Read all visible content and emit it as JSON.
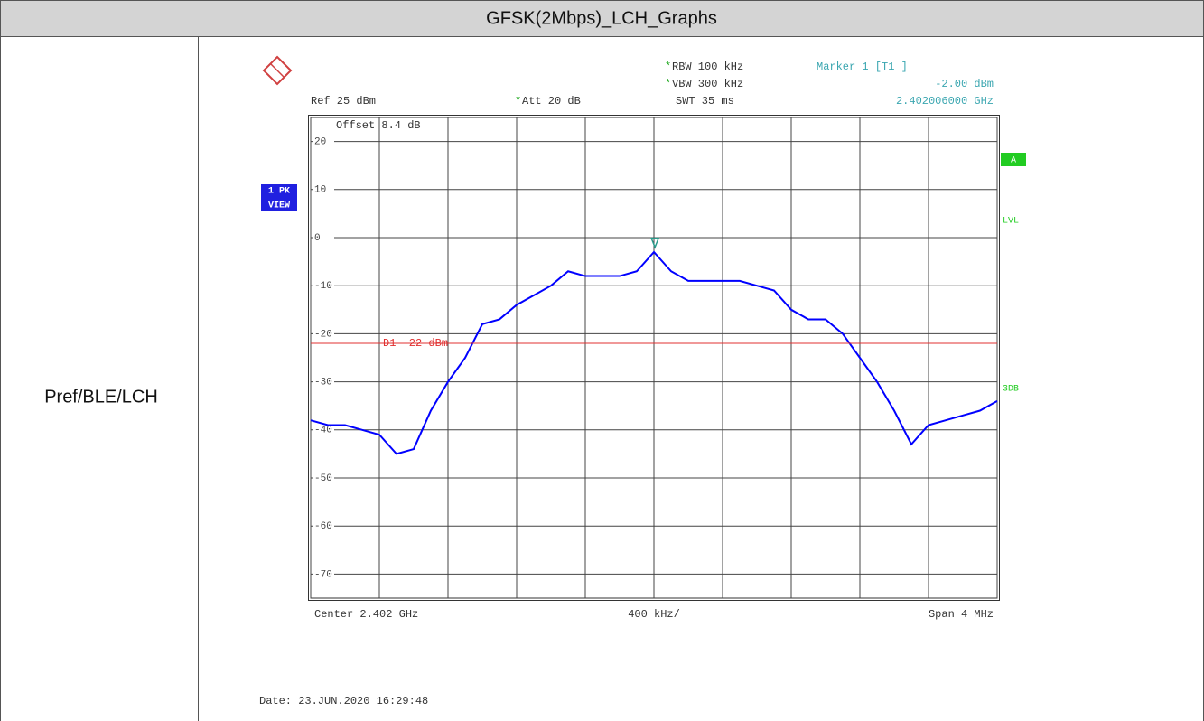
{
  "table": {
    "title": "GFSK(2Mbps)_LCH_Graphs",
    "row_label": "Pref/BLE/LCH"
  },
  "chart_data": {
    "type": "line",
    "ref_label": "Ref  25 dBm",
    "att_label": "Att  20 dB",
    "rbw_label": "RBW 100 kHz",
    "vbw_label": "VBW 300 kHz",
    "swt_label": "SWT 35 ms",
    "marker_title": "Marker 1 [T1 ]",
    "marker_level": "-2.00 dBm",
    "marker_freq": "2.402006000 GHz",
    "offset_label": "Offset  8.4 dB",
    "trace_label": [
      "1 PK",
      "VIEW"
    ],
    "side_labels": {
      "a": "A",
      "lvl": "LVL",
      "db": "3DB"
    },
    "center_label": "Center  2.402 GHz",
    "div_label": "400 kHz/",
    "span_label": "Span  4 MHz",
    "date_label": "Date: 23.JUN.2020  16:29:48",
    "xlim": [
      2.4,
      2.404
    ],
    "xticks": [
      2.4,
      2.4004,
      2.4008,
      2.4012,
      2.4016,
      2.402,
      2.4024,
      2.4028,
      2.4032,
      2.4036,
      2.404
    ],
    "ylim": [
      -75,
      25
    ],
    "yticks": [
      20,
      10,
      0,
      -10,
      -20,
      -30,
      -40,
      -50,
      -60,
      -70
    ],
    "grid": true,
    "x": [
      2.4,
      2.4001,
      2.4002,
      2.4003,
      2.4004,
      2.4005,
      2.4006,
      2.4007,
      2.4008,
      2.4009,
      2.401,
      2.4011,
      2.4012,
      2.4013,
      2.4014,
      2.4015,
      2.4016,
      2.4017,
      2.4018,
      2.4019,
      2.402,
      2.4021,
      2.4022,
      2.4023,
      2.4024,
      2.4025,
      2.4026,
      2.4027,
      2.4028,
      2.4029,
      2.403,
      2.4031,
      2.4032,
      2.4033,
      2.4034,
      2.4035,
      2.4036,
      2.4037,
      2.4038,
      2.4039,
      2.404
    ],
    "series": [
      {
        "color": "#0000ff",
        "values": [
          -38,
          -39,
          -39,
          -40,
          -41,
          -45,
          -44,
          -36,
          -30,
          -25,
          -18,
          -17,
          -14,
          -12,
          -10,
          -7,
          -8,
          -8,
          -8,
          -7,
          -3,
          -7,
          -9,
          -9,
          -9,
          -9,
          -10,
          -11,
          -15,
          -17,
          -17,
          -20,
          -25,
          -30,
          -36,
          -43,
          -39,
          -38,
          -37,
          -36,
          -34
        ]
      }
    ],
    "marker": {
      "x": 2.402006,
      "y": -2,
      "color": "#2a9a8a"
    },
    "display_line": {
      "label": "D1  -22 dBm",
      "value": -22,
      "color": "#e03030"
    }
  }
}
